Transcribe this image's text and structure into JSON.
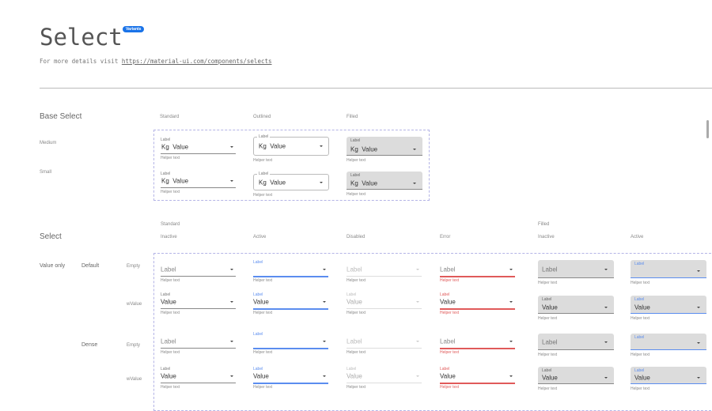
{
  "header": {
    "title": "Select",
    "badge": "Variants",
    "subtitle_prefix": "For more details visit",
    "link": "https://material-ui.com/components/selects"
  },
  "colors": {
    "accent": "#1a73e8",
    "active": "#5b8def",
    "error": "#e05a5a",
    "filled_bg": "#dcdcdc"
  },
  "base": {
    "title": "Base Select",
    "columns": [
      "Standard",
      "Outlined",
      "Filled"
    ],
    "rows": [
      {
        "name": "Medium"
      },
      {
        "name": "Small"
      }
    ],
    "field": {
      "label": "Label",
      "prefix": "Kg",
      "value": "Value",
      "helper": "Helper text"
    }
  },
  "select": {
    "title": "Select",
    "groups": [
      "Standard",
      "Filled"
    ],
    "states": [
      "Inactive",
      "Active",
      "Disabled",
      "Error",
      "Inactive",
      "Active"
    ],
    "category": "Value only",
    "sizes": [
      "Default",
      "Dense"
    ],
    "row_types": [
      "Empty",
      "wValue",
      "Empty",
      "wValue"
    ],
    "field": {
      "label": "Label",
      "value": "Value",
      "helper": "Helper text"
    }
  },
  "icons": {
    "dropdown": "arrow-drop-down-icon"
  }
}
